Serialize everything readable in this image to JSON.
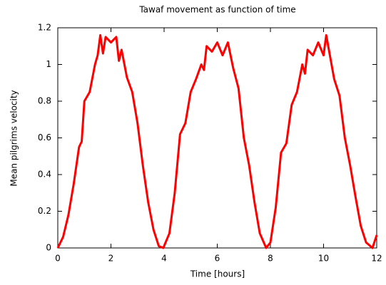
{
  "chart_data": {
    "type": "line",
    "title": "Tawaf movement as function of time",
    "xlabel": "Time [hours]",
    "ylabel": "Mean pilgrims velocity",
    "x": [
      0,
      0.2,
      0.4,
      0.6,
      0.8,
      0.9,
      1.0,
      1.2,
      1.4,
      1.5,
      1.6,
      1.7,
      1.8,
      2.0,
      2.2,
      2.3,
      2.4,
      2.6,
      2.8,
      3.0,
      3.2,
      3.4,
      3.6,
      3.8,
      3.97,
      4.2,
      4.4,
      4.6,
      4.8,
      5.0,
      5.2,
      5.4,
      5.5,
      5.6,
      5.8,
      6.0,
      6.2,
      6.4,
      6.6,
      6.8,
      7.0,
      7.2,
      7.4,
      7.6,
      7.84,
      8.0,
      8.2,
      8.4,
      8.6,
      8.8,
      9.0,
      9.2,
      9.3,
      9.4,
      9.6,
      9.8,
      10.0,
      10.1,
      10.2,
      10.4,
      10.6,
      10.8,
      11.0,
      11.2,
      11.4,
      11.6,
      11.84,
      12
    ],
    "series": [
      {
        "color": "#ff0000",
        "values": [
          0,
          0.06,
          0.18,
          0.35,
          0.55,
          0.58,
          0.8,
          0.85,
          1.0,
          1.05,
          1.16,
          1.06,
          1.15,
          1.12,
          1.15,
          1.02,
          1.08,
          0.93,
          0.85,
          0.68,
          0.45,
          0.25,
          0.1,
          0.01,
          0,
          0.08,
          0.3,
          0.62,
          0.68,
          0.85,
          0.92,
          1.0,
          0.97,
          1.1,
          1.07,
          1.12,
          1.05,
          1.12,
          0.98,
          0.87,
          0.6,
          0.45,
          0.25,
          0.08,
          0,
          0.03,
          0.22,
          0.52,
          0.57,
          0.78,
          0.85,
          1.0,
          0.95,
          1.08,
          1.05,
          1.12,
          1.05,
          1.16,
          1.08,
          0.92,
          0.83,
          0.6,
          0.45,
          0.28,
          0.12,
          0.03,
          0,
          0.07
        ]
      }
    ],
    "xlim": [
      0,
      12
    ],
    "xticks": [
      0,
      2,
      4,
      6,
      8,
      10,
      12
    ],
    "ylim": [
      0,
      1.2
    ],
    "yticks": [
      0,
      0.2,
      0.4,
      0.6,
      0.8,
      1,
      1.2
    ]
  }
}
